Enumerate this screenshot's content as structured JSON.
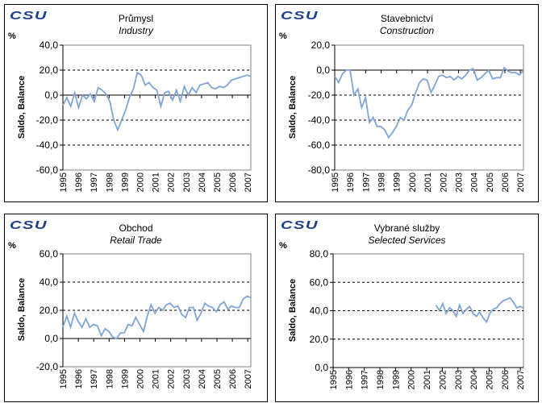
{
  "logo_text": "CSU",
  "chart_data": [
    {
      "type": "line",
      "title": "Průmysl",
      "subtitle": "Industry",
      "unit": "%",
      "ylabel": "Saldo, Balance",
      "ylim": [
        -60,
        40
      ],
      "yticks": [
        "-60,0",
        "-40,0",
        "-20,0",
        "0,0",
        "20,0",
        "40,0"
      ],
      "xlim": [
        1995,
        2007.2
      ],
      "xticks": [
        "1995",
        "1996",
        "1997",
        "1998",
        "1999",
        "2000",
        "2001",
        "2002",
        "2003",
        "2004",
        "2005",
        "2006",
        "2007"
      ],
      "grid": "dashed horizontal",
      "color": "#7fa4d6",
      "y": [
        -8,
        -2,
        -9,
        2,
        -10,
        0,
        -3,
        1,
        -5,
        6,
        4,
        1,
        -5,
        -20,
        -28,
        -20,
        -12,
        -2,
        5,
        18,
        16,
        8,
        10,
        6,
        4,
        -9,
        2,
        3,
        -4,
        4,
        -5,
        7,
        0,
        6,
        2,
        8,
        9,
        10,
        6,
        5,
        7,
        6,
        8,
        12,
        13,
        14,
        15,
        16,
        15
      ]
    },
    {
      "type": "line",
      "title": "Stavebnictví",
      "subtitle": "Construction",
      "unit": "%",
      "ylabel": "Saldo, Balance",
      "ylim": [
        -80,
        20
      ],
      "yticks": [
        "-80,0",
        "-60,0",
        "-40,0",
        "-20,0",
        "0,0",
        "20,0"
      ],
      "xlim": [
        1995,
        2007.2
      ],
      "xticks": [
        "1995",
        "1996",
        "1997",
        "1998",
        "1999",
        "2000",
        "2001",
        "2002",
        "2003",
        "2004",
        "2005",
        "2006",
        "2007"
      ],
      "grid": "dashed horizontal",
      "color": "#7fa4d6",
      "y": [
        -5,
        -10,
        -3,
        0,
        0,
        -20,
        -15,
        -30,
        -22,
        -42,
        -38,
        -45,
        -45,
        -48,
        -54,
        -50,
        -45,
        -38,
        -40,
        -32,
        -28,
        -18,
        -10,
        -7,
        -8,
        -18,
        -12,
        -5,
        -4,
        -6,
        -5,
        -8,
        -5,
        -7,
        -4,
        0,
        1,
        -8,
        -6,
        -3,
        0,
        -7,
        -6,
        -6,
        2,
        -1,
        -2,
        -2,
        -4,
        0
      ]
    },
    {
      "type": "line",
      "title": "Obchod",
      "subtitle": "Retail Trade",
      "unit": "%",
      "ylabel": "Saldo, Balance",
      "ylim": [
        -20,
        60
      ],
      "yticks": [
        "-20,0",
        "0,0",
        "20,0",
        "40,0",
        "60,0"
      ],
      "xlim": [
        1995,
        2007.2
      ],
      "xticks": [
        "1995",
        "1996",
        "1997",
        "1998",
        "1999",
        "2000",
        "2001",
        "2002",
        "2003",
        "2004",
        "2005",
        "2006",
        "2007"
      ],
      "grid": "dashed horizontal",
      "color": "#7fa4d6",
      "y": [
        8,
        16,
        8,
        18,
        12,
        8,
        14,
        8,
        10,
        9,
        2,
        7,
        5,
        1,
        0,
        4,
        4,
        10,
        9,
        15,
        10,
        5,
        16,
        24,
        18,
        22,
        20,
        24,
        25,
        22,
        23,
        17,
        15,
        22,
        22,
        13,
        18,
        25,
        23,
        22,
        19,
        24,
        26,
        21,
        23,
        22,
        22,
        28,
        30,
        29
      ]
    },
    {
      "type": "line",
      "title": "Vybrané služby",
      "subtitle": "Selected Services",
      "unit": "%",
      "ylabel": "Saldo, Balance",
      "ylim": [
        0,
        80
      ],
      "yticks": [
        "0,0",
        "20,0",
        "40,0",
        "60,0",
        "80,0"
      ],
      "xlim": [
        1995,
        2007.2
      ],
      "xticks": [
        "1995",
        "1996",
        "1997",
        "1998",
        "1999",
        "2000",
        "2001",
        "2002",
        "2003",
        "2004",
        "2005",
        "2006",
        "2007"
      ],
      "grid": "dashed horizontal",
      "color": "#7fa4d6",
      "x_start": 2001.6,
      "y": [
        44,
        40,
        45,
        38,
        42,
        40,
        36,
        44,
        38,
        41,
        43,
        38,
        36,
        39,
        35,
        32,
        38,
        41,
        42,
        45,
        47,
        48,
        49,
        46,
        42,
        43,
        42
      ]
    }
  ]
}
